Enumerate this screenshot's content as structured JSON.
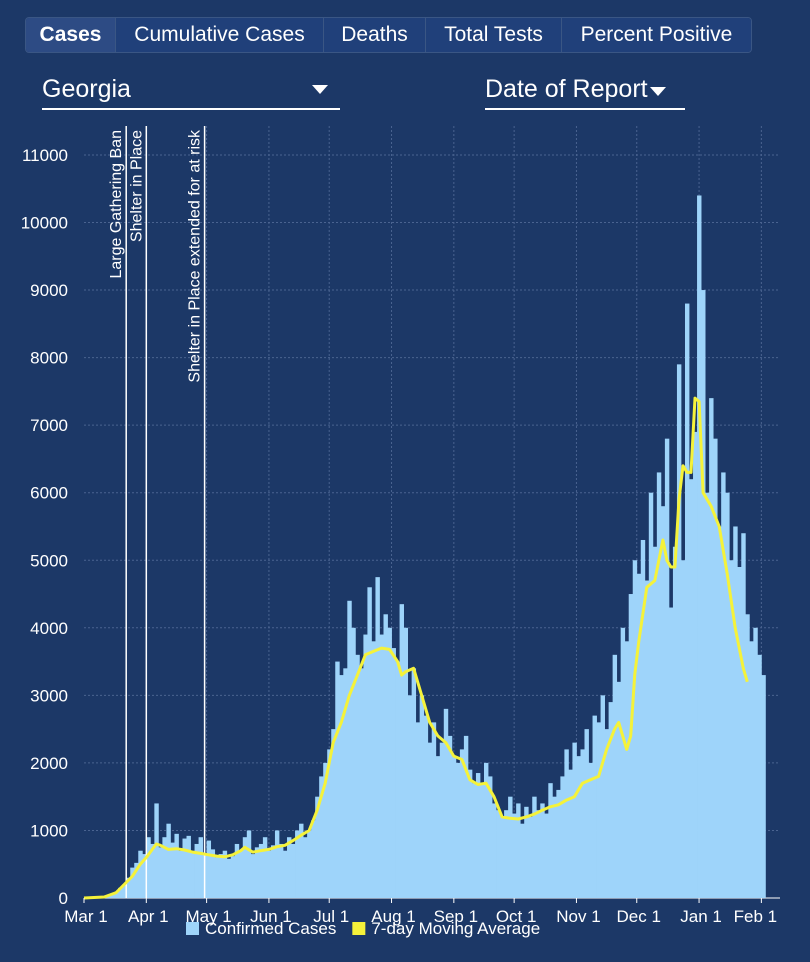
{
  "tabs": [
    {
      "label": "Cases",
      "active": true
    },
    {
      "label": "Cumulative Cases",
      "active": false
    },
    {
      "label": "Deaths",
      "active": false
    },
    {
      "label": "Total Tests",
      "active": false
    },
    {
      "label": "Percent Positive",
      "active": false
    }
  ],
  "filters": {
    "state": "Georgia",
    "date_type": "Date of Report"
  },
  "colors": {
    "background": "#1c3867",
    "bars": "#9ed4fa",
    "moving_average": "#f5f23a",
    "grid": "#4a6390",
    "annotation_lines": "#ffffff"
  },
  "chart_data": {
    "type": "bar",
    "title": "",
    "xlabel": "",
    "ylabel": "",
    "ylim": [
      0,
      11400
    ],
    "y_ticks": [
      0,
      1000,
      2000,
      3000,
      4000,
      5000,
      6000,
      7000,
      8000,
      9000,
      10000,
      11000
    ],
    "x_range": [
      "Mar 1",
      "Feb 5"
    ],
    "x_ticks": [
      {
        "label": "Mar 1",
        "day": 0
      },
      {
        "label": "Apr 1",
        "day": 31
      },
      {
        "label": "May 1",
        "day": 61
      },
      {
        "label": "Jun 1",
        "day": 92
      },
      {
        "label": "Jul 1",
        "day": 122
      },
      {
        "label": "Aug 1",
        "day": 153
      },
      {
        "label": "Sep 1",
        "day": 184
      },
      {
        "label": "Oct 1",
        "day": 214
      },
      {
        "label": "Nov 1",
        "day": 245
      },
      {
        "label": "Dec 1",
        "day": 275
      },
      {
        "label": "Jan 1",
        "day": 306
      },
      {
        "label": "Feb 1",
        "day": 337
      }
    ],
    "annotations": [
      {
        "label": "Large Gathering Ban",
        "day": 21
      },
      {
        "label": "Shelter in Place",
        "day": 31
      },
      {
        "label": "Shelter in Place extended for at risk",
        "day": 60
      }
    ],
    "legend": [
      {
        "label": "Confirmed Cases",
        "color": "#9ed4fa"
      },
      {
        "label": "7-day Moving Average",
        "color": "#f5f23a"
      }
    ],
    "legend_position": "bottom",
    "series": [
      {
        "name": "Confirmed Cases",
        "kind": "bar",
        "points": [
          [
            3,
            5
          ],
          [
            6,
            10
          ],
          [
            9,
            20
          ],
          [
            12,
            40
          ],
          [
            14,
            60
          ],
          [
            16,
            90
          ],
          [
            18,
            150
          ],
          [
            20,
            200
          ],
          [
            22,
            300
          ],
          [
            24,
            450
          ],
          [
            26,
            520
          ],
          [
            28,
            700
          ],
          [
            30,
            650
          ],
          [
            32,
            900
          ],
          [
            34,
            800
          ],
          [
            36,
            1400
          ],
          [
            38,
            750
          ],
          [
            40,
            900
          ],
          [
            42,
            1100
          ],
          [
            44,
            820
          ],
          [
            46,
            950
          ],
          [
            48,
            700
          ],
          [
            50,
            880
          ],
          [
            52,
            920
          ],
          [
            54,
            700
          ],
          [
            56,
            800
          ],
          [
            58,
            900
          ],
          [
            60,
            650
          ],
          [
            62,
            850
          ],
          [
            64,
            720
          ],
          [
            66,
            600
          ],
          [
            68,
            650
          ],
          [
            70,
            700
          ],
          [
            72,
            580
          ],
          [
            74,
            620
          ],
          [
            76,
            800
          ],
          [
            78,
            700
          ],
          [
            80,
            900
          ],
          [
            82,
            1000
          ],
          [
            84,
            650
          ],
          [
            86,
            750
          ],
          [
            88,
            800
          ],
          [
            90,
            900
          ],
          [
            92,
            700
          ],
          [
            94,
            780
          ],
          [
            96,
            1000
          ],
          [
            98,
            800
          ],
          [
            100,
            700
          ],
          [
            102,
            900
          ],
          [
            104,
            800
          ],
          [
            106,
            1000
          ],
          [
            108,
            1100
          ],
          [
            110,
            900
          ],
          [
            112,
            1000
          ],
          [
            114,
            1150
          ],
          [
            116,
            1500
          ],
          [
            118,
            1800
          ],
          [
            120,
            2000
          ],
          [
            122,
            2200
          ],
          [
            124,
            2500
          ],
          [
            126,
            3500
          ],
          [
            128,
            3300
          ],
          [
            130,
            3400
          ],
          [
            132,
            4400
          ],
          [
            134,
            4000
          ],
          [
            136,
            3600
          ],
          [
            138,
            3400
          ],
          [
            140,
            3900
          ],
          [
            142,
            4600
          ],
          [
            144,
            3800
          ],
          [
            146,
            4750
          ],
          [
            148,
            3900
          ],
          [
            150,
            4200
          ],
          [
            152,
            4000
          ],
          [
            154,
            3700
          ],
          [
            156,
            3500
          ],
          [
            158,
            4350
          ],
          [
            160,
            4000
          ],
          [
            162,
            3000
          ],
          [
            164,
            3400
          ],
          [
            166,
            2600
          ],
          [
            168,
            3000
          ],
          [
            170,
            2700
          ],
          [
            172,
            2300
          ],
          [
            174,
            2600
          ],
          [
            176,
            2100
          ],
          [
            178,
            2300
          ],
          [
            180,
            2800
          ],
          [
            182,
            2400
          ],
          [
            184,
            2100
          ],
          [
            186,
            2000
          ],
          [
            188,
            2200
          ],
          [
            190,
            2400
          ],
          [
            192,
            1900
          ],
          [
            194,
            1700
          ],
          [
            196,
            1850
          ],
          [
            198,
            1700
          ],
          [
            200,
            2000
          ],
          [
            202,
            1800
          ],
          [
            204,
            1400
          ],
          [
            206,
            1300
          ],
          [
            208,
            1200
          ],
          [
            210,
            1300
          ],
          [
            212,
            1500
          ],
          [
            214,
            1250
          ],
          [
            216,
            1400
          ],
          [
            218,
            1100
          ],
          [
            220,
            1350
          ],
          [
            222,
            1200
          ],
          [
            224,
            1500
          ],
          [
            226,
            1300
          ],
          [
            228,
            1400
          ],
          [
            230,
            1250
          ],
          [
            232,
            1700
          ],
          [
            234,
            1500
          ],
          [
            236,
            1600
          ],
          [
            238,
            1800
          ],
          [
            240,
            2200
          ],
          [
            242,
            1900
          ],
          [
            244,
            2300
          ],
          [
            246,
            2100
          ],
          [
            248,
            2200
          ],
          [
            250,
            2500
          ],
          [
            252,
            2000
          ],
          [
            254,
            2700
          ],
          [
            256,
            2600
          ],
          [
            258,
            3000
          ],
          [
            260,
            2500
          ],
          [
            262,
            2900
          ],
          [
            264,
            3600
          ],
          [
            266,
            3200
          ],
          [
            268,
            4000
          ],
          [
            270,
            3800
          ],
          [
            272,
            4500
          ],
          [
            274,
            5000
          ],
          [
            276,
            4800
          ],
          [
            278,
            5300
          ],
          [
            280,
            4700
          ],
          [
            282,
            6000
          ],
          [
            284,
            5200
          ],
          [
            286,
            6300
          ],
          [
            288,
            5800
          ],
          [
            290,
            6800
          ],
          [
            292,
            4300
          ],
          [
            294,
            5200
          ],
          [
            296,
            7900
          ],
          [
            298,
            5000
          ],
          [
            300,
            8800
          ],
          [
            302,
            6200
          ],
          [
            304,
            6900
          ],
          [
            306,
            10400
          ],
          [
            308,
            9000
          ],
          [
            310,
            6000
          ],
          [
            312,
            7400
          ],
          [
            314,
            6800
          ],
          [
            316,
            5500
          ],
          [
            318,
            6300
          ],
          [
            320,
            6000
          ],
          [
            322,
            5000
          ],
          [
            324,
            5500
          ],
          [
            326,
            4900
          ],
          [
            328,
            5400
          ],
          [
            330,
            4200
          ],
          [
            332,
            3800
          ],
          [
            334,
            4000
          ],
          [
            336,
            3600
          ],
          [
            338,
            3300
          ]
        ]
      },
      {
        "name": "7-day Moving Average",
        "kind": "line",
        "points": [
          [
            0,
            0
          ],
          [
            10,
            15
          ],
          [
            16,
            80
          ],
          [
            20,
            200
          ],
          [
            24,
            320
          ],
          [
            28,
            500
          ],
          [
            31,
            600
          ],
          [
            34,
            720
          ],
          [
            36,
            800
          ],
          [
            38,
            780
          ],
          [
            42,
            720
          ],
          [
            46,
            730
          ],
          [
            50,
            710
          ],
          [
            54,
            680
          ],
          [
            58,
            660
          ],
          [
            62,
            640
          ],
          [
            66,
            620
          ],
          [
            70,
            610
          ],
          [
            74,
            640
          ],
          [
            78,
            700
          ],
          [
            80,
            750
          ],
          [
            84,
            680
          ],
          [
            88,
            700
          ],
          [
            92,
            720
          ],
          [
            96,
            760
          ],
          [
            100,
            780
          ],
          [
            104,
            850
          ],
          [
            108,
            930
          ],
          [
            112,
            1000
          ],
          [
            116,
            1300
          ],
          [
            120,
            1700
          ],
          [
            124,
            2300
          ],
          [
            128,
            2600
          ],
          [
            132,
            3000
          ],
          [
            136,
            3300
          ],
          [
            140,
            3600
          ],
          [
            144,
            3650
          ],
          [
            148,
            3700
          ],
          [
            152,
            3680
          ],
          [
            156,
            3500
          ],
          [
            158,
            3300
          ],
          [
            160,
            3350
          ],
          [
            164,
            3400
          ],
          [
            168,
            3000
          ],
          [
            172,
            2600
          ],
          [
            176,
            2400
          ],
          [
            180,
            2300
          ],
          [
            184,
            2100
          ],
          [
            188,
            2050
          ],
          [
            192,
            1750
          ],
          [
            196,
            1680
          ],
          [
            200,
            1700
          ],
          [
            204,
            1500
          ],
          [
            208,
            1200
          ],
          [
            212,
            1180
          ],
          [
            216,
            1170
          ],
          [
            220,
            1200
          ],
          [
            224,
            1240
          ],
          [
            228,
            1300
          ],
          [
            232,
            1350
          ],
          [
            236,
            1380
          ],
          [
            240,
            1450
          ],
          [
            244,
            1500
          ],
          [
            248,
            1700
          ],
          [
            252,
            1750
          ],
          [
            256,
            1800
          ],
          [
            260,
            2200
          ],
          [
            264,
            2500
          ],
          [
            266,
            2600
          ],
          [
            268,
            2400
          ],
          [
            270,
            2200
          ],
          [
            272,
            2400
          ],
          [
            274,
            3300
          ],
          [
            276,
            3800
          ],
          [
            278,
            4200
          ],
          [
            280,
            4600
          ],
          [
            284,
            4700
          ],
          [
            288,
            5300
          ],
          [
            290,
            5000
          ],
          [
            292,
            4900
          ],
          [
            294,
            4900
          ],
          [
            296,
            5900
          ],
          [
            298,
            6400
          ],
          [
            300,
            6300
          ],
          [
            302,
            6300
          ],
          [
            304,
            7400
          ],
          [
            306,
            7350
          ],
          [
            308,
            6000
          ],
          [
            312,
            5800
          ],
          [
            316,
            5500
          ],
          [
            320,
            4800
          ],
          [
            324,
            4000
          ],
          [
            328,
            3400
          ],
          [
            330,
            3200
          ]
        ]
      }
    ]
  }
}
